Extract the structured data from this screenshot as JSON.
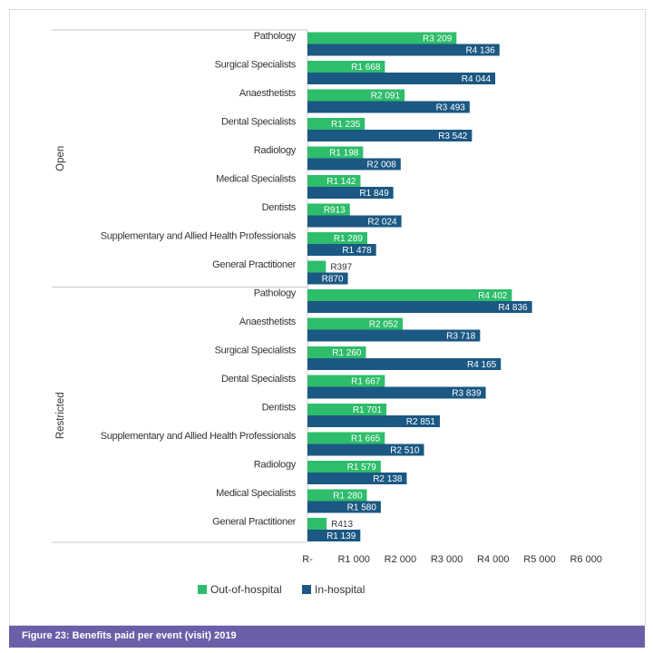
{
  "colors": {
    "out_of_hospital": "#2ebd6b",
    "in_hospital": "#1b5883",
    "caption_bg": "#6a5fa8"
  },
  "caption": "Figure 23: Benefits paid per event (visit) 2019",
  "chart_data": {
    "type": "bar",
    "orientation": "horizontal",
    "title": "",
    "xlabel": "",
    "ylabel": "",
    "xlim": [
      0,
      6000
    ],
    "x_ticks": [
      0,
      1000,
      2000,
      3000,
      4000,
      5000,
      6000
    ],
    "x_tick_labels": [
      "R-",
      "R1 000",
      "R2 000",
      "R3 000",
      "R4 000",
      "R5 000",
      "R6 000"
    ],
    "legend": {
      "placement": "bottom",
      "entries": [
        "Out-of-hospital",
        "In-hospital"
      ]
    },
    "groups": [
      {
        "name": "Open",
        "categories": [
          "Pathology",
          "Surgical Specialists",
          "Anaesthetists",
          "Dental Specialists",
          "Radiology",
          "Medical Specialists",
          "Dentists",
          "Supplementary and Allied Health Professionals",
          "General Practitioner"
        ],
        "series": [
          {
            "name": "Out-of-hospital",
            "values": [
              3209,
              1668,
              2091,
              1235,
              1198,
              1142,
              913,
              1289,
              397
            ],
            "labels": [
              "R3 209",
              "R1 668",
              "R2 091",
              "R1 235",
              "R1 198",
              "R1 142",
              "R913",
              "R1 289",
              "R397"
            ]
          },
          {
            "name": "In-hospital",
            "values": [
              4136,
              4044,
              3493,
              3542,
              2008,
              1849,
              2024,
              1478,
              870
            ],
            "labels": [
              "R4 136",
              "R4 044",
              "R3 493",
              "R3 542",
              "R2 008",
              "R1 849",
              "R2 024",
              "R1 478",
              "R870"
            ]
          }
        ]
      },
      {
        "name": "Restricted",
        "categories": [
          "Pathology",
          "Anaesthetists",
          "Surgical Specialists",
          "Dental Specialists",
          "Dentists",
          "Supplementary and Allied Health Professionals",
          "Radiology",
          "Medical Specialists",
          "General Practitioner"
        ],
        "series": [
          {
            "name": "Out-of-hospital",
            "values": [
              4402,
              2052,
              1260,
              1667,
              1701,
              1665,
              1579,
              1280,
              413
            ],
            "labels": [
              "R4 402",
              "R2 052",
              "R1 260",
              "R1 667",
              "R1 701",
              "R1 665",
              "R1 579",
              "R1 280",
              "R413"
            ]
          },
          {
            "name": "In-hospital",
            "values": [
              4836,
              3718,
              4165,
              3839,
              2851,
              2510,
              2138,
              1580,
              1139
            ],
            "labels": [
              "R4 836",
              "R3 718",
              "R4 165",
              "R3 839",
              "R2 851",
              "R2 510",
              "R2 138",
              "R1 580",
              "R1 139"
            ]
          }
        ]
      }
    ]
  }
}
